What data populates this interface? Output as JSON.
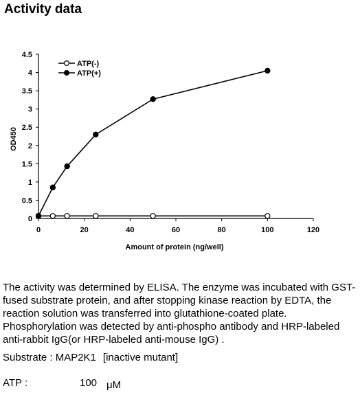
{
  "page": {
    "title": "Activity data",
    "description": "The activity was determined by ELISA. The enzyme was incubated with GST-fused substrate protein, and after stopping kinase reaction by EDTA, the reaction solution was transferred into glutathione-coated plate. Phosphorylation was detected by anti-phospho antibody and HRP-labeled anti-rabbit IgG(or HRP-labeled anti-mouse IgG) .",
    "substrate_label": "Substrate : MAP2K1",
    "substrate_value": "[inactive mutant]",
    "atp_label": "ATP :",
    "atp_value": "100",
    "atp_unit": "μM"
  },
  "chart_data": {
    "type": "line",
    "title": "",
    "xlabel": "Amount of protein (ng/well)",
    "ylabel": "OD450",
    "xlim": [
      0,
      120
    ],
    "ylim": [
      0,
      4.5
    ],
    "x_ticks": [
      "0",
      "20",
      "40",
      "60",
      "80",
      "100",
      "120"
    ],
    "y_ticks": [
      "0",
      "0.5",
      "1",
      "1.5",
      "2",
      "2.5",
      "3",
      "3.5",
      "4",
      "4.5"
    ],
    "grid": false,
    "legend_position": "top-left",
    "series": [
      {
        "name": "ATP(-)",
        "marker": "open-circle",
        "color": "#000000",
        "x": [
          0,
          6.25,
          12.5,
          25,
          50,
          100
        ],
        "y": [
          0.07,
          0.07,
          0.07,
          0.07,
          0.07,
          0.07
        ]
      },
      {
        "name": "ATP(+)",
        "marker": "filled-circle",
        "color": "#000000",
        "x": [
          0,
          6.25,
          12.5,
          25,
          50,
          100
        ],
        "y": [
          0.07,
          0.85,
          1.43,
          2.3,
          3.27,
          4.05
        ]
      }
    ]
  }
}
